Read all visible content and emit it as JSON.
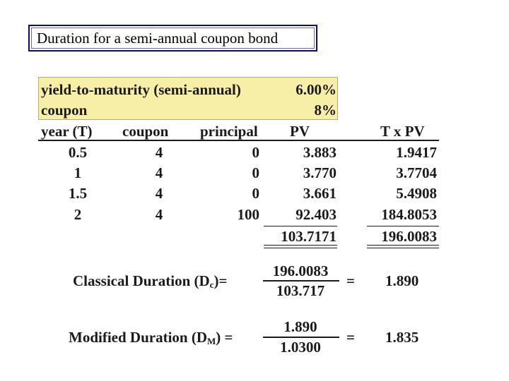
{
  "title": "Duration for a semi-annual coupon bond",
  "inputs": {
    "ytm_label": "yield-to-maturity (semi-annual)",
    "ytm_value": "6.00%",
    "coupon_label": "coupon",
    "coupon_value": "8%"
  },
  "table": {
    "headers": [
      "year (T)",
      "coupon",
      "principal",
      "PV",
      "T x PV"
    ],
    "rows": [
      [
        "0.5",
        "4",
        "0",
        "3.883",
        "1.9417"
      ],
      [
        "1",
        "4",
        "0",
        "3.770",
        "3.7704"
      ],
      [
        "1.5",
        "4",
        "0",
        "3.661",
        "5.4908"
      ],
      [
        "2",
        "4",
        "100",
        "92.403",
        "184.8053"
      ]
    ],
    "totals": {
      "pv": "103.7171",
      "txpv": "196.0083"
    }
  },
  "classical": {
    "label_main": "Classical Duration (D",
    "label_sub": "c",
    "label_end": ")=",
    "numerator": "196.0083",
    "denominator": "103.717",
    "equals": "=",
    "result": "1.890"
  },
  "modified": {
    "label_main": "Modified Duration (D",
    "label_sub": "M",
    "label_end": ") =",
    "numerator": "1.890",
    "denominator": "1.0300",
    "equals": "=",
    "result": "1.835"
  }
}
